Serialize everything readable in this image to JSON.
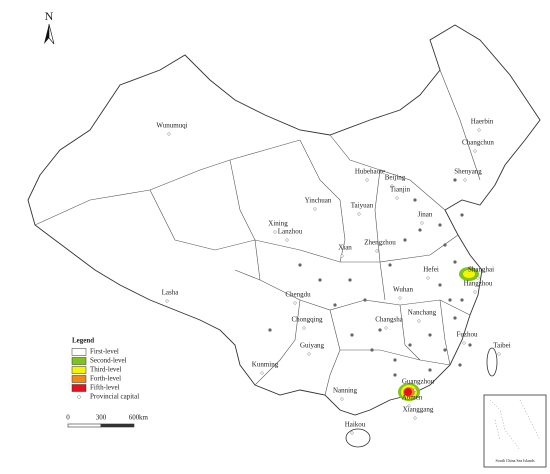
{
  "compass": "N",
  "cities": [
    "Haerbin",
    "Changchun",
    "Shenyang",
    "Wunumuqi",
    "Hubehaote",
    "Beijing",
    "Tianjin",
    "Taiyuan",
    "Yinchuan",
    "Xining",
    "Lanzhou",
    "Jinan",
    "Zhengzhou",
    "Xian",
    "Lasha",
    "Chengdu",
    "Hefei",
    "Shanghai",
    "Hangzhou",
    "Wuhan",
    "Nanchang",
    "Changsha",
    "Chongqing",
    "Fuzhou",
    "Taibei",
    "Guiyang",
    "Kunming",
    "Nanning",
    "Guangzhou",
    "Aomen",
    "Xianggang",
    "Haikou"
  ],
  "legend": {
    "title": "Legend",
    "items": [
      {
        "label": "First-level",
        "color": "#ffffff"
      },
      {
        "label": "Second-level",
        "color": "#7fc31c"
      },
      {
        "label": "Third-level",
        "color": "#f5f500"
      },
      {
        "label": "Forth-level",
        "color": "#f08a16"
      },
      {
        "label": "Fifth-level",
        "color": "#e8101a"
      }
    ],
    "capital": "Provincial capital"
  },
  "scale": {
    "ticks": [
      0,
      300,
      600
    ],
    "unit": "km"
  },
  "inset": "South China Sea Islands"
}
